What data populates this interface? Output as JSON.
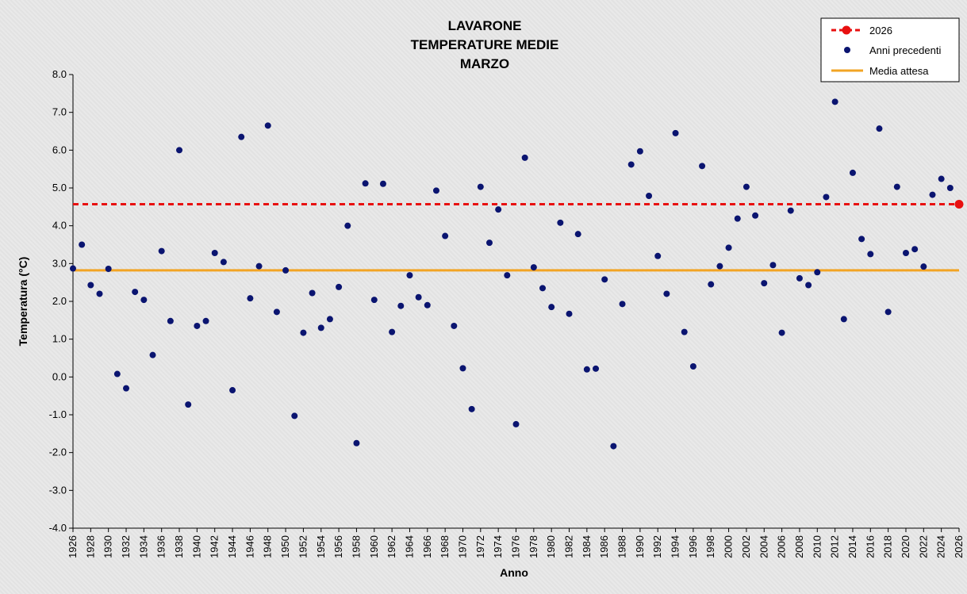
{
  "chart_data": {
    "type": "scatter",
    "title_lines": [
      "LAVARONE",
      "TEMPERATURE MEDIE",
      "MARZO"
    ],
    "xlabel": "Anno",
    "ylabel": "Temperatura (°C)",
    "xlim": [
      1926,
      2026
    ],
    "ylim": [
      -4.0,
      8.0
    ],
    "x_ticks": [
      1926,
      1928,
      1930,
      1932,
      1934,
      1936,
      1938,
      1940,
      1942,
      1944,
      1946,
      1948,
      1950,
      1952,
      1954,
      1956,
      1958,
      1960,
      1962,
      1964,
      1966,
      1968,
      1970,
      1972,
      1974,
      1976,
      1978,
      1980,
      1982,
      1984,
      1986,
      1988,
      1990,
      1992,
      1994,
      1996,
      1998,
      2000,
      2002,
      2004,
      2006,
      2008,
      2010,
      2012,
      2014,
      2016,
      2018,
      2020,
      2022,
      2024,
      2026
    ],
    "y_ticks": [
      "-4.0",
      "-3.0",
      "-2.0",
      "-1.0",
      "0.0",
      "1.0",
      "2.0",
      "3.0",
      "4.0",
      "5.0",
      "6.0",
      "7.0",
      "8.0"
    ],
    "legend": {
      "position": "top-right",
      "entries": [
        {
          "label": "2026",
          "style": "red-dashed-dot"
        },
        {
          "label": "Anni precedenti",
          "style": "dot"
        },
        {
          "label": "Media attesa",
          "style": "orange-line"
        }
      ]
    },
    "grid": false,
    "series": [
      {
        "name": "Anni precedenti",
        "color": "#0a1470",
        "points": [
          [
            1926,
            2.87
          ],
          [
            1927,
            3.5
          ],
          [
            1928,
            2.43
          ],
          [
            1929,
            2.2
          ],
          [
            1930,
            2.86
          ],
          [
            1931,
            0.08
          ],
          [
            1932,
            -0.3
          ],
          [
            1933,
            2.25
          ],
          [
            1934,
            2.04
          ],
          [
            1935,
            0.58
          ],
          [
            1936,
            3.33
          ],
          [
            1937,
            1.48
          ],
          [
            1938,
            6.0
          ],
          [
            1939,
            -0.73
          ],
          [
            1940,
            1.35
          ],
          [
            1941,
            1.48
          ],
          [
            1942,
            3.28
          ],
          [
            1943,
            3.04
          ],
          [
            1944,
            -0.35
          ],
          [
            1945,
            6.35
          ],
          [
            1946,
            2.08
          ],
          [
            1947,
            2.93
          ],
          [
            1948,
            6.65
          ],
          [
            1949,
            1.72
          ],
          [
            1950,
            2.82
          ],
          [
            1951,
            -1.03
          ],
          [
            1952,
            1.17
          ],
          [
            1953,
            2.22
          ],
          [
            1954,
            1.3
          ],
          [
            1955,
            1.53
          ],
          [
            1956,
            2.38
          ],
          [
            1957,
            4.0
          ],
          [
            1958,
            -1.75
          ],
          [
            1959,
            5.12
          ],
          [
            1960,
            2.04
          ],
          [
            1961,
            5.11
          ],
          [
            1962,
            1.19
          ],
          [
            1963,
            1.88
          ],
          [
            1964,
            2.69
          ],
          [
            1965,
            2.11
          ],
          [
            1966,
            1.9
          ],
          [
            1967,
            4.93
          ],
          [
            1968,
            3.73
          ],
          [
            1969,
            1.35
          ],
          [
            1970,
            0.23
          ],
          [
            1971,
            -0.85
          ],
          [
            1972,
            5.03
          ],
          [
            1973,
            3.55
          ],
          [
            1974,
            4.43
          ],
          [
            1975,
            2.69
          ],
          [
            1976,
            -1.25
          ],
          [
            1977,
            5.8
          ],
          [
            1978,
            2.9
          ],
          [
            1979,
            2.35
          ],
          [
            1980,
            1.85
          ],
          [
            1981,
            4.08
          ],
          [
            1982,
            1.67
          ],
          [
            1983,
            3.78
          ],
          [
            1984,
            0.2
          ],
          [
            1985,
            0.22
          ],
          [
            1986,
            2.58
          ],
          [
            1987,
            -1.83
          ],
          [
            1988,
            1.93
          ],
          [
            1989,
            5.62
          ],
          [
            1990,
            5.97
          ],
          [
            1991,
            4.79
          ],
          [
            1992,
            3.2
          ],
          [
            1993,
            2.2
          ],
          [
            1994,
            6.45
          ],
          [
            1995,
            1.19
          ],
          [
            1996,
            0.28
          ],
          [
            1997,
            5.58
          ],
          [
            1998,
            2.45
          ],
          [
            1999,
            2.93
          ],
          [
            2000,
            3.42
          ],
          [
            2001,
            4.19
          ],
          [
            2002,
            5.03
          ],
          [
            2003,
            4.27
          ],
          [
            2004,
            2.48
          ],
          [
            2005,
            2.96
          ],
          [
            2006,
            1.17
          ],
          [
            2007,
            4.4
          ],
          [
            2008,
            2.61
          ],
          [
            2009,
            2.43
          ],
          [
            2010,
            2.77
          ],
          [
            2011,
            4.76
          ],
          [
            2012,
            7.28
          ],
          [
            2013,
            1.53
          ],
          [
            2014,
            5.4
          ],
          [
            2015,
            3.65
          ],
          [
            2016,
            3.25
          ],
          [
            2017,
            6.57
          ],
          [
            2018,
            1.72
          ],
          [
            2019,
            5.03
          ],
          [
            2020,
            3.28
          ],
          [
            2021,
            3.38
          ],
          [
            2022,
            2.92
          ],
          [
            2023,
            4.82
          ],
          [
            2024,
            5.24
          ],
          [
            2025,
            5.0
          ]
        ]
      },
      {
        "name": "2026",
        "color": "#e81010",
        "y_level": 4.57,
        "points": [
          [
            2026,
            4.57
          ]
        ]
      },
      {
        "name": "Media attesa",
        "color": "#f2a424",
        "y_level": 2.82
      }
    ]
  }
}
